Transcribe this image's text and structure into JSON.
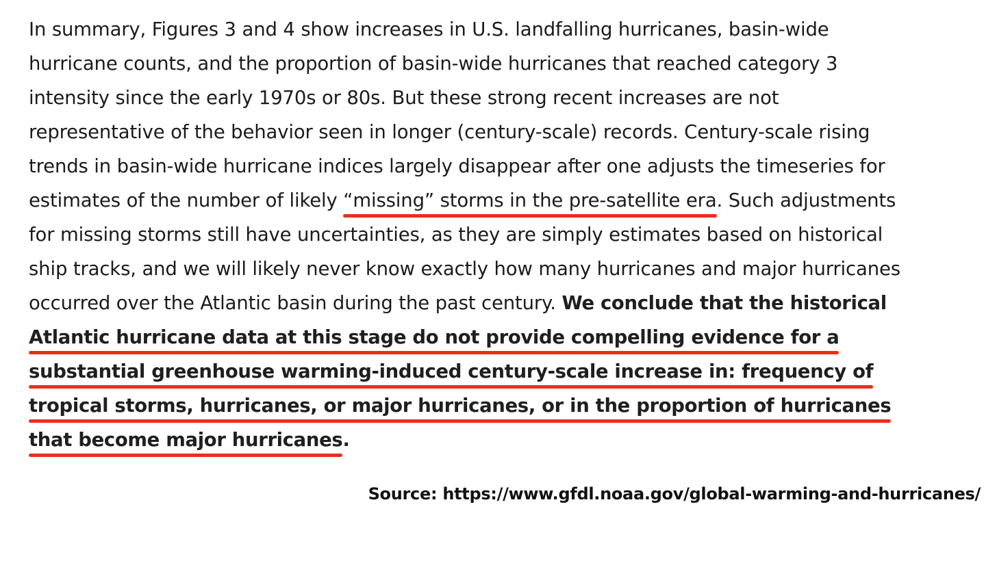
{
  "highlight_color": "#e8301c",
  "paragraph": {
    "lines": [
      {
        "segments": [
          {
            "text": "In summary, Figures 3 and 4 show increases in U.S. landfalling hurricanes, basin-wide"
          }
        ]
      },
      {
        "segments": [
          {
            "text": "hurricane counts, and the proportion of basin-wide hurricanes that reached category 3"
          }
        ]
      },
      {
        "segments": [
          {
            "text": "intensity since the early 1970s or 80s.  But these strong recent increases are not"
          }
        ]
      },
      {
        "segments": [
          {
            "text": "representative of the behavior seen in longer (century-scale) records. Century-scale rising"
          }
        ]
      },
      {
        "segments": [
          {
            "text": "trends in basin-wide hurricane indices largely disappear after one adjusts the timeseries for"
          }
        ]
      },
      {
        "segments": [
          {
            "text": "estimates of the number of likely "
          },
          {
            "text": "“missing” storms in the pre-satellite era",
            "underline": true
          },
          {
            "text": ".  Such adjustments"
          }
        ]
      },
      {
        "segments": [
          {
            "text": "for missing storms still have uncertainties, as they are simply estimates based on historical"
          }
        ]
      },
      {
        "segments": [
          {
            "text": "ship tracks, and we will likely never know exactly how many hurricanes and major hurricanes"
          }
        ]
      },
      {
        "segments": [
          {
            "text": "occurred over the Atlantic basin during the past century.  "
          },
          {
            "text": "We conclude that the historical",
            "bold": true
          }
        ]
      },
      {
        "segments": [
          {
            "text": "Atlantic hurricane data at this stage do not provide compelling evidence for a",
            "bold": true,
            "underline": true
          }
        ]
      },
      {
        "segments": [
          {
            "text": "substantial greenhouse warming-induced century-scale increase in:  frequency of",
            "bold": true,
            "underline": true
          }
        ]
      },
      {
        "segments": [
          {
            "text": "tropical storms, hurricanes, or major hurricanes, or in the proportion of hurricanes",
            "bold": true,
            "underline": true
          }
        ]
      },
      {
        "segments": [
          {
            "text": "that become major hurricanes",
            "bold": true,
            "underline": true
          },
          {
            "text": ".",
            "bold": true
          }
        ]
      }
    ]
  },
  "source": {
    "text": "Source: https://www.gfdl.noaa.gov/global-warming-and-hurricanes/"
  }
}
